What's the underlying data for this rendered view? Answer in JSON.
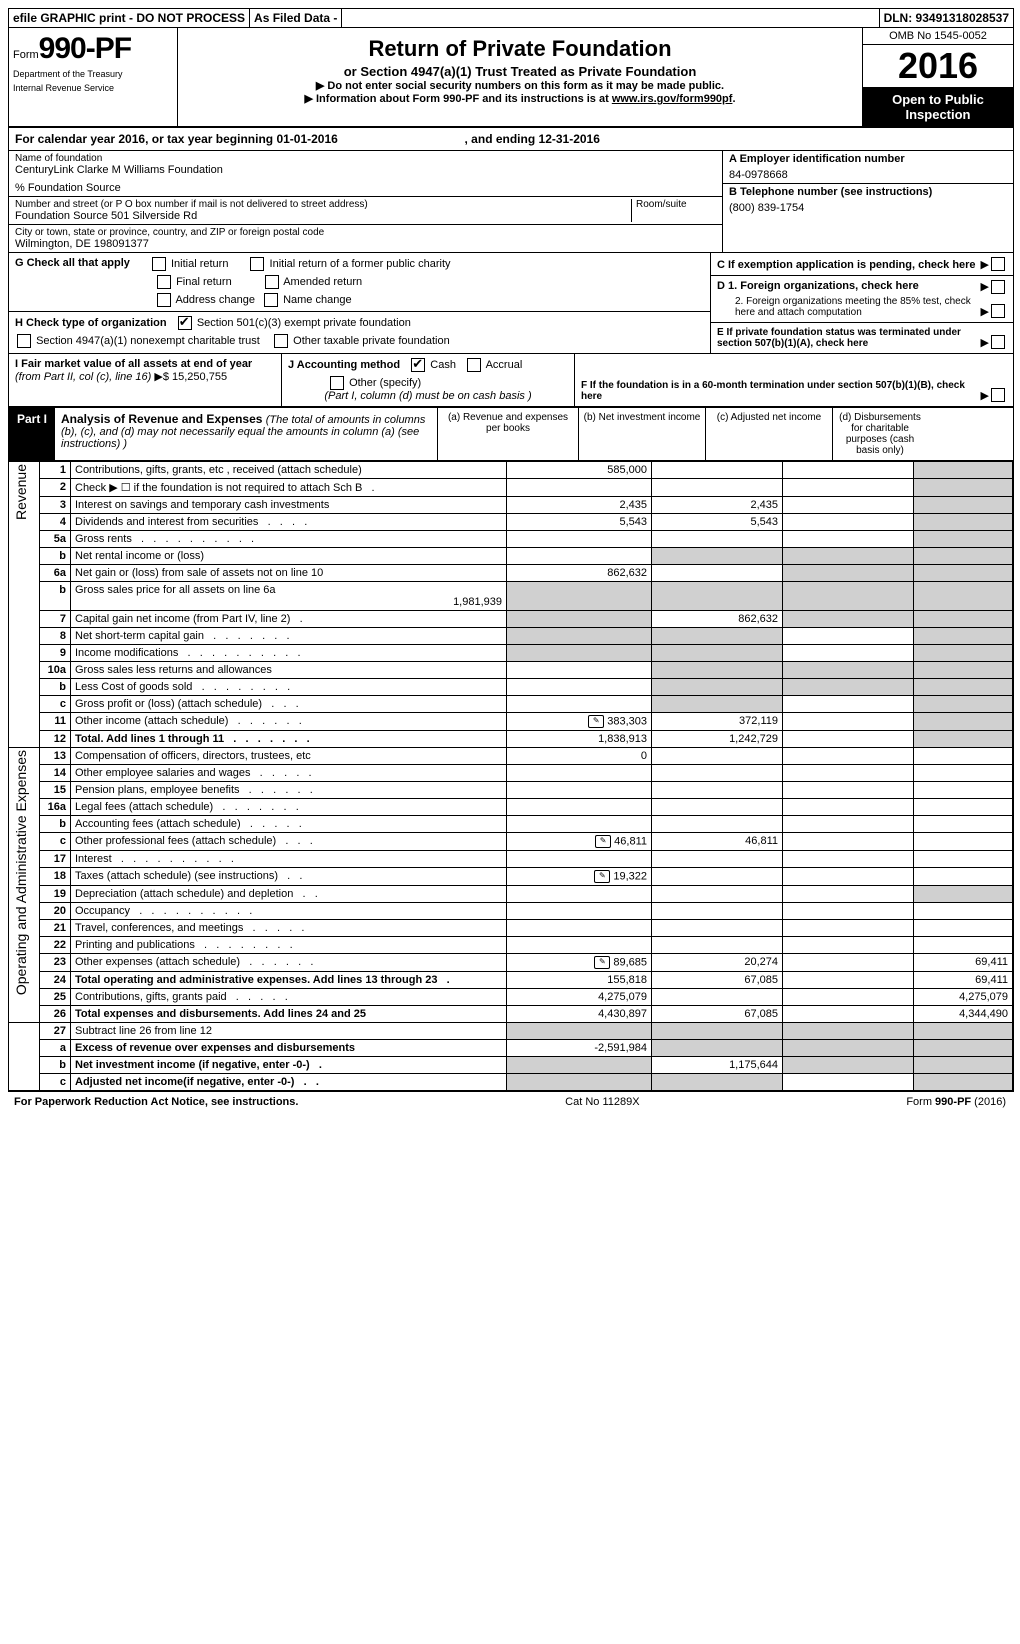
{
  "top_bar": {
    "t1": "efile GRAPHIC print - DO NOT PROCESS",
    "t2": "As Filed Data -",
    "t3": "DLN: 93491318028537"
  },
  "header": {
    "form_word": "Form",
    "form_num": "990-PF",
    "dept1": "Department of the Treasury",
    "dept2": "Internal Revenue Service",
    "title": "Return of Private Foundation",
    "sub": "or Section 4947(a)(1) Trust Treated as Private Foundation",
    "line1": "▶ Do not enter social security numbers on this form as it may be made public.",
    "line2_a": "▶ Information about Form 990-PF and its instructions is at ",
    "line2_link": "www.irs.gov/form990pf",
    "line2_b": ".",
    "omb": "OMB No  1545-0052",
    "year": "2016",
    "open": "Open to Public Inspection"
  },
  "cal_year": "For calendar year 2016, or tax year beginning 01-01-2016",
  "cal_year_end": ", and ending 12-31-2016",
  "name_label": "Name of foundation",
  "name": "CenturyLink Clarke M Williams Foundation",
  "care_of": "% Foundation Source",
  "addr_label": "Number and street (or P O  box number if mail is not delivered to street address)",
  "room_label": "Room/suite",
  "addr": "Foundation Source 501 Silverside Rd",
  "city_label": "City or town, state or province, country, and ZIP or foreign postal code",
  "city": "Wilmington, DE  198091377",
  "a_label": "A Employer identification number",
  "ein": "84-0978668",
  "b_label": "B Telephone number (see instructions)",
  "phone": "(800) 839-1754",
  "c_label": "C If exemption application is pending, check here",
  "d1": "D 1. Foreign organizations, check here",
  "d2": "2. Foreign organizations meeting the 85% test, check here and attach computation",
  "e_label": "E  If private foundation status was terminated under section 507(b)(1)(A), check here",
  "f_label": "F  If the foundation is in a 60-month termination under section 507(b)(1)(B), check here",
  "g_label": "G Check all that apply",
  "g_opts": [
    "Initial return",
    "Initial return of a former public charity",
    "Final return",
    "Amended return",
    "Address change",
    "Name change"
  ],
  "h_label": "H Check type of organization",
  "h_opt1": "Section 501(c)(3) exempt private foundation",
  "h_opt2": "Section 4947(a)(1) nonexempt charitable trust",
  "h_opt3": "Other taxable private foundation",
  "i_label": "I Fair market value of all assets at end of year ",
  "i_from": "(from Part II, col  (c), line 16)",
  "i_amt": "▶$  15,250,755",
  "j_label": "J Accounting method",
  "j_cash": "Cash",
  "j_accrual": "Accrual",
  "j_other": "Other (specify)",
  "j_note": "(Part I, column (d) must be on cash basis )",
  "part1": {
    "label": "Part I",
    "title": "Analysis of Revenue and Expenses ",
    "note": "(The total of amounts in columns (b), (c), and (d) may not necessarily equal the amounts in column (a) (see instructions) )",
    "col_a": "(a)   Revenue and expenses per books",
    "col_b": "(b)   Net investment income",
    "col_c": "(c)   Adjusted net income",
    "col_d": "(d)   Disbursements for charitable purposes (cash basis only)"
  },
  "side_revenue": "Revenue",
  "side_expenses": "Operating and Administrative Expenses",
  "rows": [
    {
      "n": "1",
      "d": "Contributions, gifts, grants, etc , received (attach schedule)",
      "a": "585,000"
    },
    {
      "n": "2",
      "d": "Check ▶ ☐  if the foundation is not required to attach Sch  B",
      "dots": true
    },
    {
      "n": "3",
      "d": "Interest on savings and temporary cash investments",
      "a": "2,435",
      "b": "2,435"
    },
    {
      "n": "4",
      "d": "Dividends and interest from securities",
      "a": "5,543",
      "b": "5,543",
      "dots": true
    },
    {
      "n": "5a",
      "d": "Gross rents",
      "dots": true
    },
    {
      "n": "b",
      "d": "Net rental income or (loss)",
      "gray_bcd": true
    },
    {
      "n": "6a",
      "d": "Net gain or (loss) from sale of assets not on line 10",
      "a": "862,632",
      "gray_cd": true
    },
    {
      "n": "b",
      "d": "Gross sales price for all assets on line 6a",
      "sub_amt": "1,981,939",
      "gray_all": true
    },
    {
      "n": "7",
      "d": "Capital gain net income (from Part IV, line 2)",
      "b": "862,632",
      "dots": true,
      "gray_a_cd": true
    },
    {
      "n": "8",
      "d": "Net short-term capital gain",
      "dots": true,
      "gray_ab_d": true
    },
    {
      "n": "9",
      "d": "Income modifications",
      "dots": true,
      "gray_ab_d": true
    },
    {
      "n": "10a",
      "d": "Gross sales less returns and allowances",
      "gray_bcd": true,
      "short": true
    },
    {
      "n": "b",
      "d": "Less  Cost of goods sold",
      "dots": true,
      "gray_bcd": true,
      "short": true
    },
    {
      "n": "c",
      "d": "Gross profit or (loss) (attach schedule)",
      "dots": true,
      "gray_b_d": true
    },
    {
      "n": "11",
      "d": "Other income (attach schedule)",
      "a": "383,303",
      "b": "372,119",
      "icon": true,
      "dots": true
    },
    {
      "n": "12",
      "d": "Total. Add lines 1 through 11",
      "a": "1,838,913",
      "b": "1,242,729",
      "bold": true,
      "dots": true
    }
  ],
  "exp_rows": [
    {
      "n": "13",
      "d": "Compensation of officers, directors, trustees, etc",
      "a": "0"
    },
    {
      "n": "14",
      "d": "Other employee salaries and wages",
      "dots": true
    },
    {
      "n": "15",
      "d": "Pension plans, employee benefits",
      "dots": true
    },
    {
      "n": "16a",
      "d": "Legal fees (attach schedule)",
      "dots": true
    },
    {
      "n": "b",
      "d": "Accounting fees (attach schedule)",
      "dots": true
    },
    {
      "n": "c",
      "d": "Other professional fees (attach schedule)",
      "a": "46,811",
      "b": "46,811",
      "icon": true,
      "dots": true
    },
    {
      "n": "17",
      "d": "Interest",
      "dots": true
    },
    {
      "n": "18",
      "d": "Taxes (attach schedule) (see instructions)",
      "a": "19,322",
      "icon": true,
      "dots": true
    },
    {
      "n": "19",
      "d": "Depreciation (attach schedule) and depletion",
      "gray_dd": true,
      "dots": true
    },
    {
      "n": "20",
      "d": "Occupancy",
      "dots": true
    },
    {
      "n": "21",
      "d": "Travel, conferences, and meetings",
      "dots": true
    },
    {
      "n": "22",
      "d": "Printing and publications",
      "dots": true
    },
    {
      "n": "23",
      "d": "Other expenses (attach schedule)",
      "a": "89,685",
      "b": "20,274",
      "dd": "69,411",
      "icon": true,
      "dots": true
    },
    {
      "n": "24",
      "d": "Total operating and administrative expenses. Add lines 13 through 23",
      "a": "155,818",
      "b": "67,085",
      "dd": "69,411",
      "bold": true,
      "dots": true
    },
    {
      "n": "25",
      "d": "Contributions, gifts, grants paid",
      "a": "4,275,079",
      "dd": "4,275,079",
      "dots": true
    },
    {
      "n": "26",
      "d": "Total expenses and disbursements. Add lines 24 and 25",
      "a": "4,430,897",
      "b": "67,085",
      "dd": "4,344,490",
      "bold": true
    }
  ],
  "bottom_rows": [
    {
      "n": "27",
      "d": "Subtract line 26 from line 12",
      "gray_all": true
    },
    {
      "n": "a",
      "d": "Excess of revenue over expenses and disbursements",
      "a": "-2,591,984",
      "bold": true,
      "gray_bcd": true
    },
    {
      "n": "b",
      "d": "Net investment income (if negative, enter -0-)",
      "b": "1,175,644",
      "bold": true,
      "gray_a_cd": true,
      "dots": true
    },
    {
      "n": "c",
      "d": "Adjusted net income(if negative, enter -0-)",
      "bold": true,
      "gray_ab_d": true,
      "dots": true
    }
  ],
  "footer": {
    "left": "For Paperwork Reduction Act Notice, see instructions.",
    "mid": "Cat  No  11289X",
    "right": "Form 990-PF (2016)"
  }
}
